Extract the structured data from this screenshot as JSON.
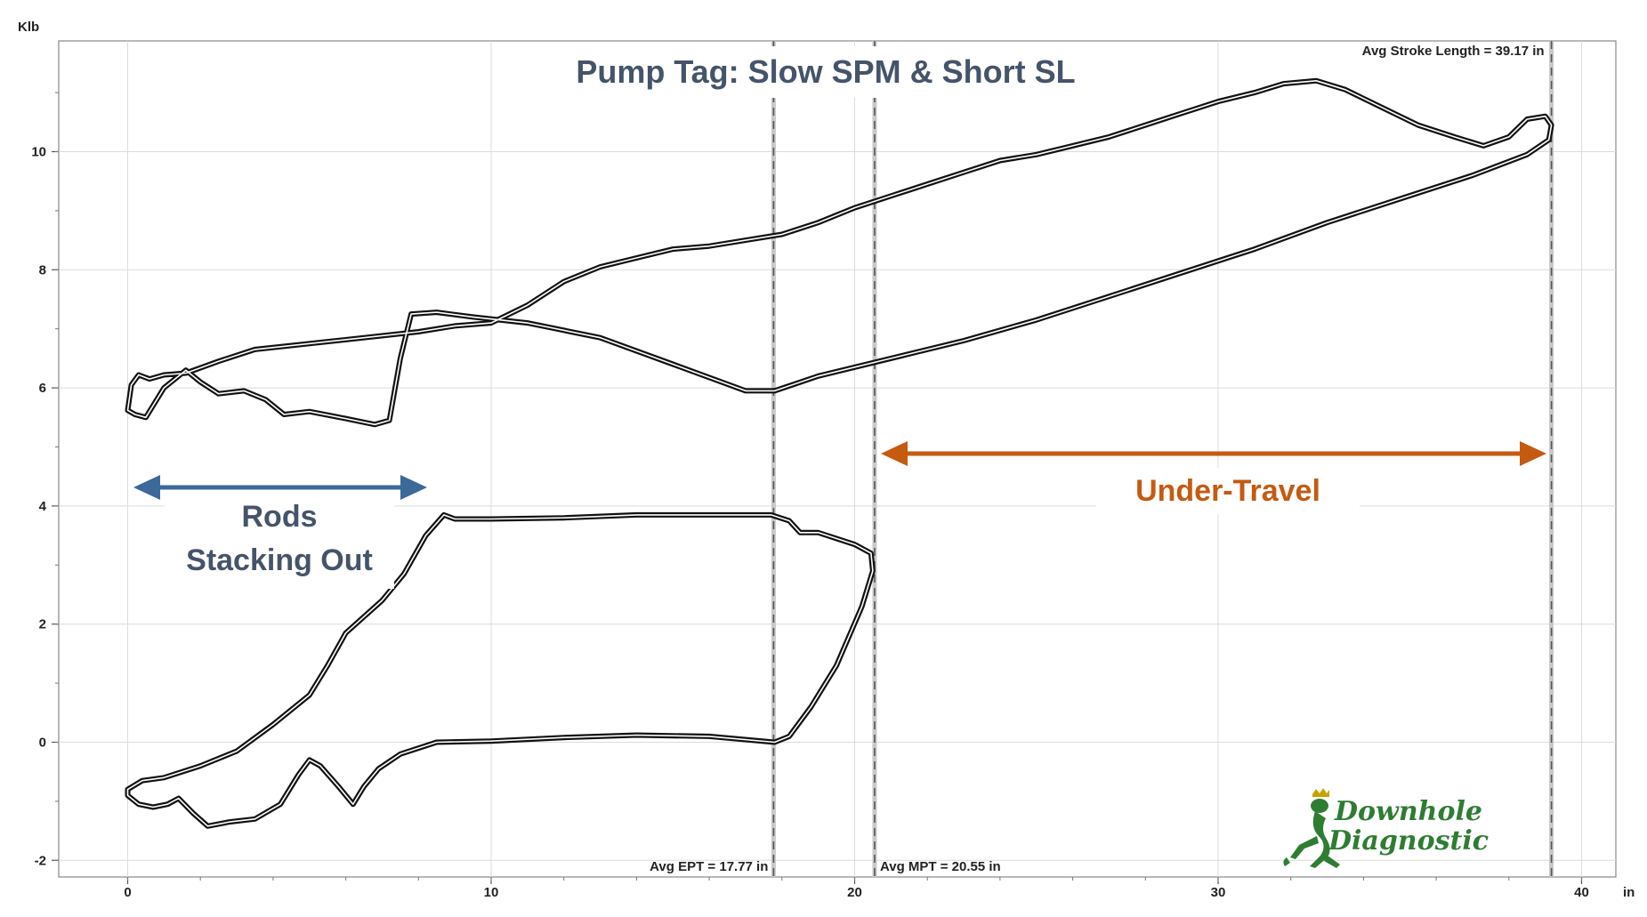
{
  "chart_data": {
    "type": "line",
    "title": "Pump Tag:  Slow SPM & Short SL",
    "xlabel": "in",
    "ylabel": "Klb",
    "xlim": [
      -2,
      41
    ],
    "ylim": [
      -2.2,
      12
    ],
    "x_ticks": [
      "0",
      "10",
      "20",
      "30",
      "40"
    ],
    "y_ticks": [
      "-2",
      "0",
      "2",
      "4",
      "6",
      "8",
      "10"
    ],
    "grid": true,
    "colors": {
      "trace": "#111111",
      "marker": "#555555",
      "rods": "#3b6a9a",
      "under_travel": "#c55a11",
      "logo": "#2e7d32"
    },
    "markers": [
      {
        "name": "Avg EPT",
        "label": "Avg EPT = 17.77 in",
        "x": 17.77
      },
      {
        "name": "Avg MPT",
        "label": "Avg MPT = 20.55 in",
        "x": 20.55
      },
      {
        "name": "Avg Stroke Length",
        "label": "Avg Stroke Length = 39.17 in",
        "x": 39.17
      }
    ],
    "annotations": {
      "rods_line1": "Rods",
      "rods_line2": "Stacking Out",
      "under_travel": "Under-Travel"
    },
    "series": [
      {
        "type": "surface-card",
        "points": [
          [
            0,
            5.62
          ],
          [
            0.1,
            6.05
          ],
          [
            0.3,
            6.22
          ],
          [
            0.6,
            6.15
          ],
          [
            1.0,
            6.22
          ],
          [
            1.6,
            6.25
          ],
          [
            2.5,
            6.45
          ],
          [
            3.5,
            6.65
          ],
          [
            5,
            6.75
          ],
          [
            6.5,
            6.85
          ],
          [
            8,
            6.95
          ],
          [
            9,
            7.05
          ],
          [
            10,
            7.1
          ],
          [
            11,
            7.4
          ],
          [
            12,
            7.8
          ],
          [
            13,
            8.05
          ],
          [
            14,
            8.2
          ],
          [
            15,
            8.35
          ],
          [
            16,
            8.4
          ],
          [
            17,
            8.5
          ],
          [
            18,
            8.6
          ],
          [
            19,
            8.8
          ],
          [
            20,
            9.05
          ],
          [
            21,
            9.25
          ],
          [
            22,
            9.45
          ],
          [
            23,
            9.65
          ],
          [
            24,
            9.85
          ],
          [
            25,
            9.95
          ],
          [
            26,
            10.1
          ],
          [
            27,
            10.25
          ],
          [
            28,
            10.45
          ],
          [
            29,
            10.65
          ],
          [
            30,
            10.85
          ],
          [
            31,
            11.0
          ],
          [
            31.8,
            11.15
          ],
          [
            32.7,
            11.2
          ],
          [
            33.5,
            11.05
          ],
          [
            34.5,
            10.75
          ],
          [
            35.5,
            10.45
          ],
          [
            36.5,
            10.25
          ],
          [
            37.3,
            10.1
          ],
          [
            38.0,
            10.25
          ],
          [
            38.5,
            10.55
          ],
          [
            39.0,
            10.6
          ],
          [
            39.17,
            10.45
          ],
          [
            39.1,
            10.2
          ],
          [
            38.5,
            9.95
          ],
          [
            37,
            9.6
          ],
          [
            35,
            9.2
          ],
          [
            33,
            8.8
          ],
          [
            31,
            8.35
          ],
          [
            29,
            7.95
          ],
          [
            27,
            7.55
          ],
          [
            25,
            7.15
          ],
          [
            23,
            6.8
          ],
          [
            21,
            6.5
          ],
          [
            19,
            6.2
          ],
          [
            17.8,
            5.95
          ],
          [
            17,
            5.95
          ],
          [
            15,
            6.4
          ],
          [
            13,
            6.85
          ],
          [
            11,
            7.1
          ],
          [
            9.5,
            7.2
          ],
          [
            8.5,
            7.28
          ],
          [
            7.8,
            7.25
          ],
          [
            7.5,
            6.5
          ],
          [
            7.2,
            5.45
          ],
          [
            6.8,
            5.38
          ],
          [
            6,
            5.48
          ],
          [
            5,
            5.6
          ],
          [
            4.3,
            5.55
          ],
          [
            3.8,
            5.8
          ],
          [
            3.2,
            5.95
          ],
          [
            2.5,
            5.9
          ],
          [
            2.0,
            6.1
          ],
          [
            1.6,
            6.3
          ],
          [
            1.0,
            6.0
          ],
          [
            0.5,
            5.5
          ],
          [
            0.2,
            5.55
          ],
          [
            0,
            5.62
          ]
        ]
      },
      {
        "type": "pump-card",
        "points": [
          [
            0,
            -0.8
          ],
          [
            0.4,
            -0.65
          ],
          [
            1,
            -0.6
          ],
          [
            2,
            -0.4
          ],
          [
            3,
            -0.15
          ],
          [
            4,
            0.3
          ],
          [
            5,
            0.8
          ],
          [
            5.5,
            1.3
          ],
          [
            6,
            1.85
          ],
          [
            7,
            2.4
          ],
          [
            7.6,
            2.85
          ],
          [
            8.2,
            3.5
          ],
          [
            8.7,
            3.85
          ],
          [
            9,
            3.78
          ],
          [
            10,
            3.78
          ],
          [
            12,
            3.8
          ],
          [
            14,
            3.85
          ],
          [
            16,
            3.85
          ],
          [
            17.7,
            3.85
          ],
          [
            18.2,
            3.75
          ],
          [
            18.5,
            3.55
          ],
          [
            19,
            3.55
          ],
          [
            20,
            3.35
          ],
          [
            20.45,
            3.2
          ],
          [
            20.5,
            2.9
          ],
          [
            20.2,
            2.3
          ],
          [
            19.5,
            1.3
          ],
          [
            18.8,
            0.6
          ],
          [
            18.2,
            0.1
          ],
          [
            17.8,
            0.0
          ],
          [
            16,
            0.1
          ],
          [
            14,
            0.12
          ],
          [
            12,
            0.08
          ],
          [
            10,
            0.02
          ],
          [
            8.5,
            0.0
          ],
          [
            7.5,
            -0.2
          ],
          [
            6.9,
            -0.45
          ],
          [
            6.5,
            -0.75
          ],
          [
            6.2,
            -1.05
          ],
          [
            5.8,
            -0.75
          ],
          [
            5.3,
            -0.4
          ],
          [
            5.0,
            -0.3
          ],
          [
            4.7,
            -0.55
          ],
          [
            4.2,
            -1.05
          ],
          [
            3.5,
            -1.3
          ],
          [
            2.8,
            -1.35
          ],
          [
            2.2,
            -1.42
          ],
          [
            1.8,
            -1.2
          ],
          [
            1.4,
            -0.95
          ],
          [
            1.1,
            -1.05
          ],
          [
            0.7,
            -1.1
          ],
          [
            0.3,
            -1.05
          ],
          [
            0,
            -0.9
          ],
          [
            0,
            -0.8
          ]
        ]
      }
    ]
  },
  "logo": {
    "line1": "Downhole",
    "line2": "Diagnostic"
  }
}
